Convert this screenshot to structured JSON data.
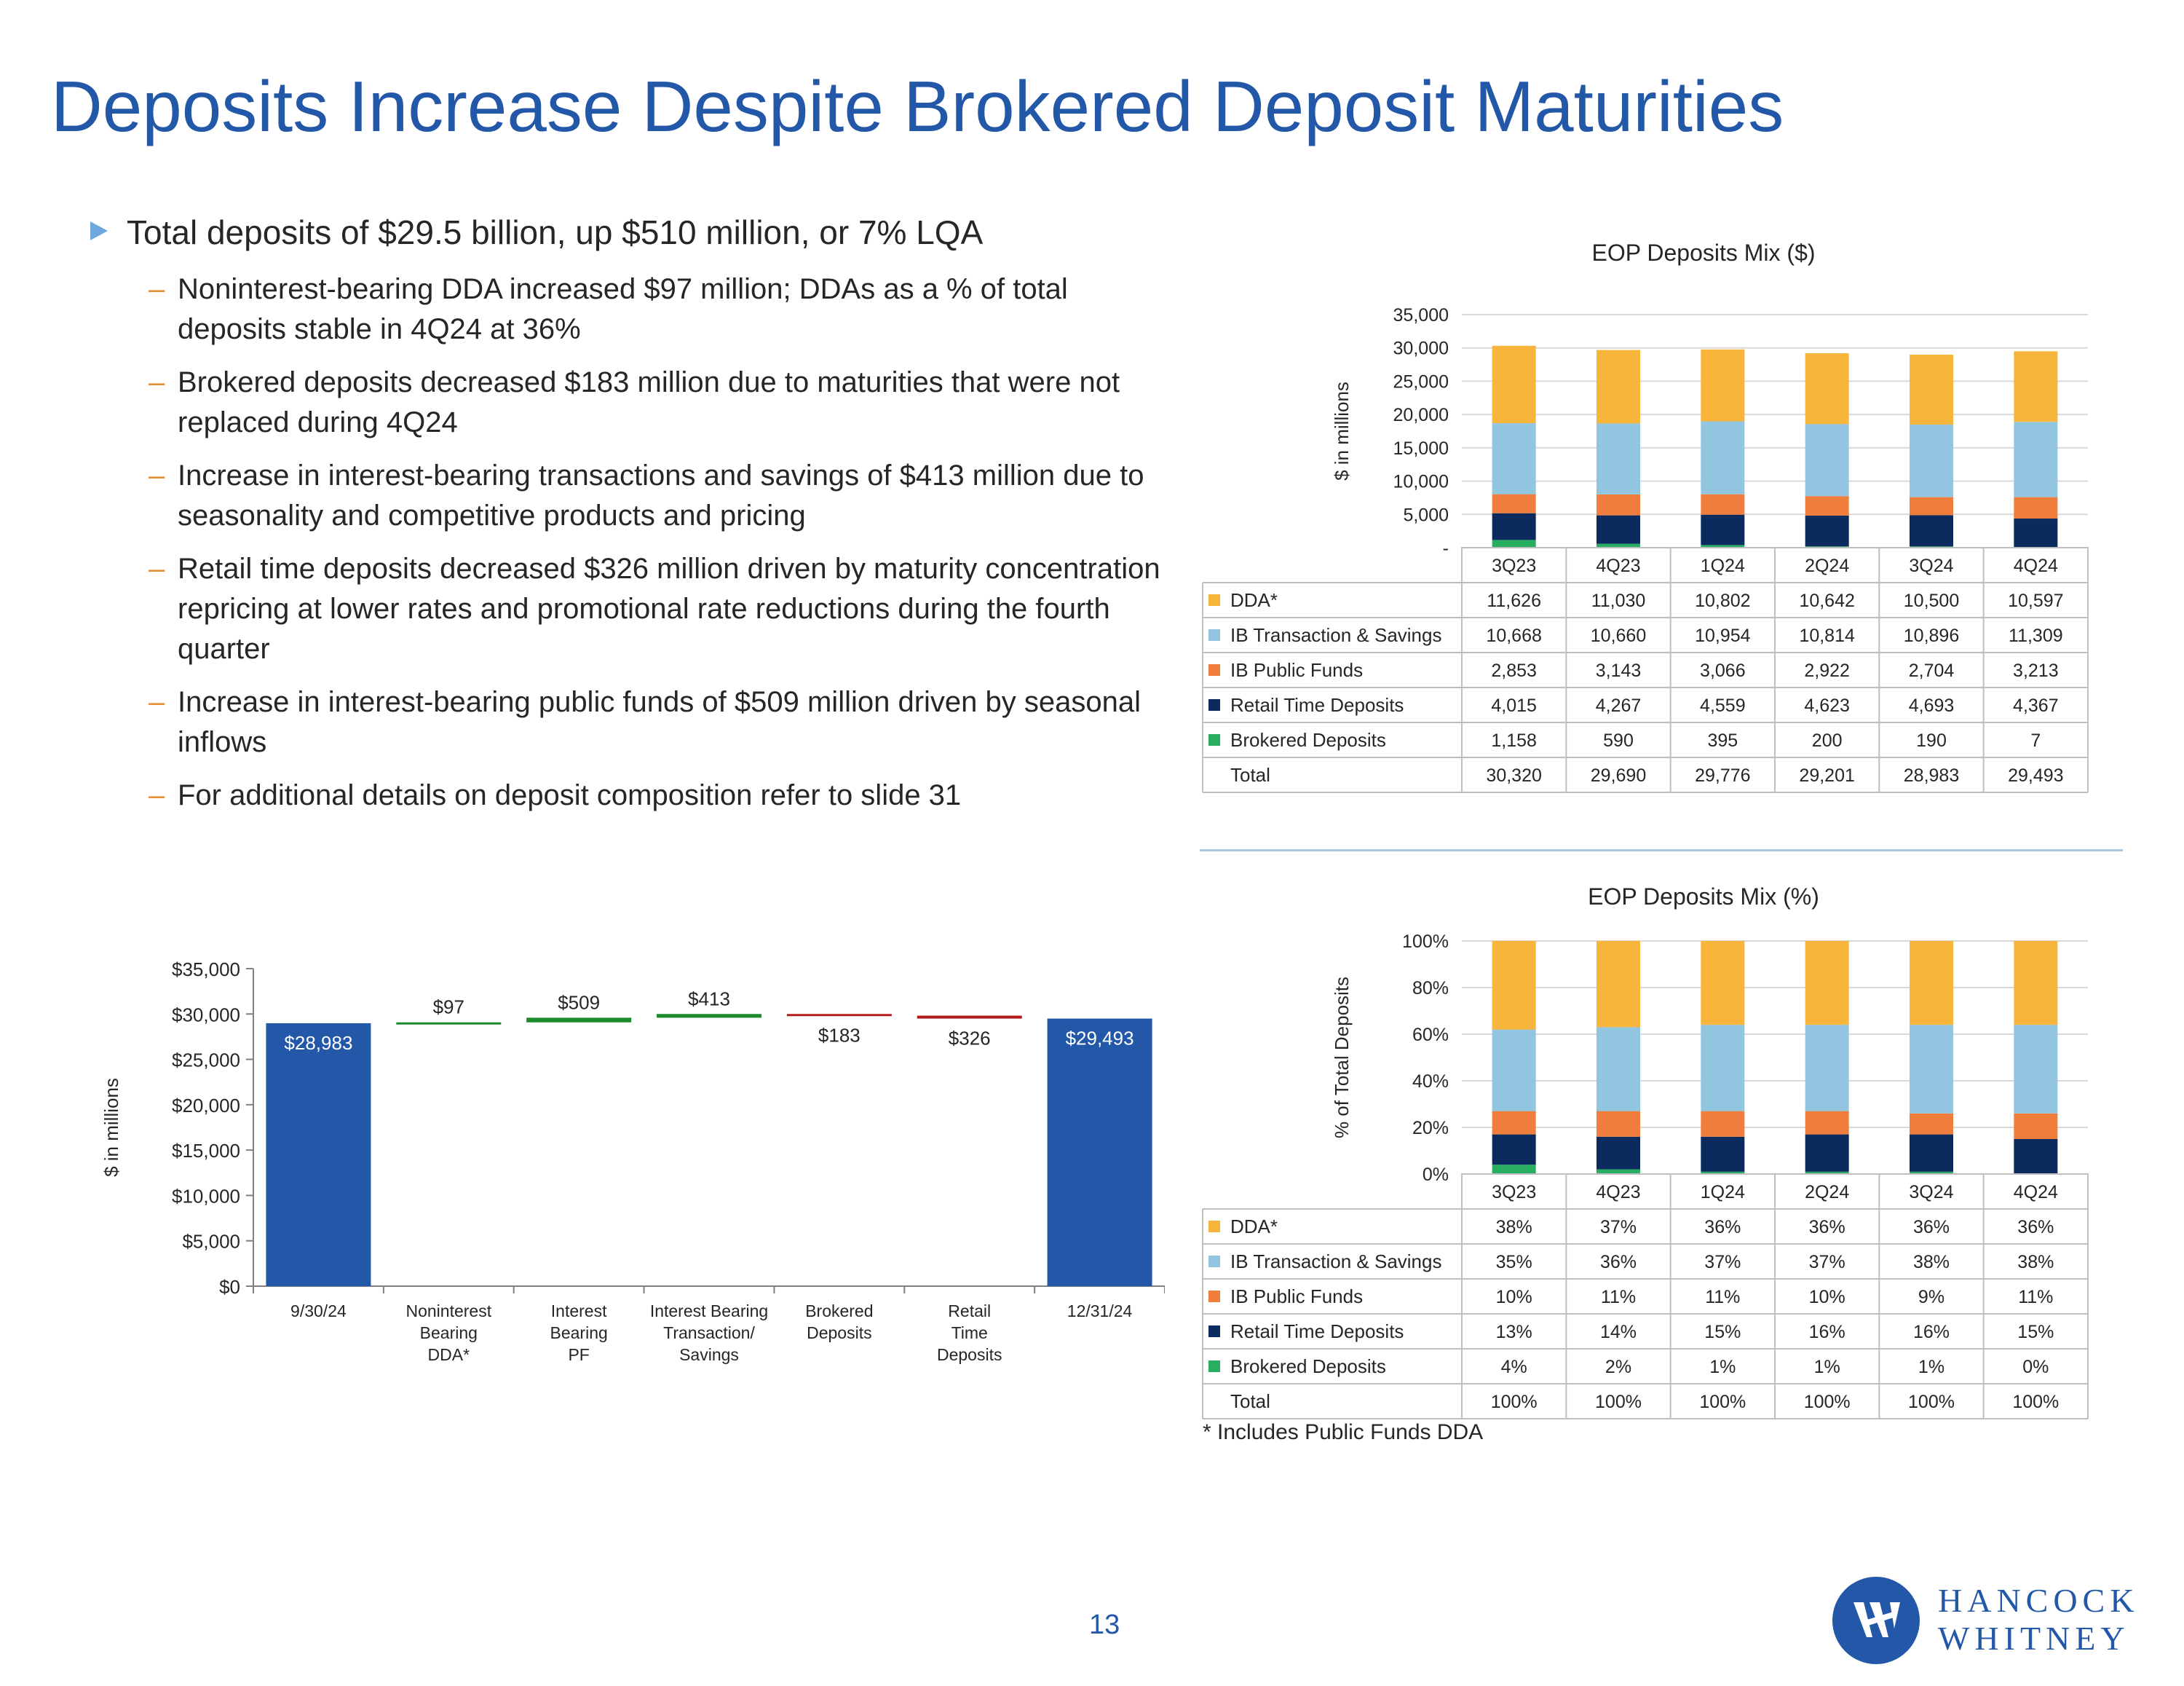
{
  "slide": {
    "title": "Deposits Increase Despite Brokered Deposit Maturities",
    "page_number": "13",
    "footnote": "* Includes Public Funds DDA",
    "logo_line1": "HANCOCK",
    "logo_line2": "WHITNEY"
  },
  "bullets": {
    "main": "Total deposits of $29.5 billion, up $510 million, or 7% LQA",
    "sub": [
      "Noninterest-bearing DDA increased $97 million; DDAs as a % of total deposits stable in 4Q24 at 36%",
      "Brokered deposits decreased $183 million due to maturities that were not replaced during 4Q24",
      "Increase in interest-bearing transactions and savings of $413 million due to seasonality and competitive products and pricing",
      "Retail time deposits decreased $326 million driven by maturity concentration repricing at lower rates and promotional rate reductions during the fourth quarter",
      "Increase in interest-bearing public funds of $509 million driven by seasonal inflows",
      "For additional details on deposit composition refer to slide 31"
    ]
  },
  "colors": {
    "accent": "#2357a8",
    "dda": "#f7b53b",
    "ib_transaction": "#92c5e0",
    "ib_public": "#ef7d3c",
    "retail_time": "#0b2b5e",
    "brokered": "#27ae60",
    "increase": "#1e8a2e",
    "decrease": "#b31b1b"
  },
  "chart_data": [
    {
      "type": "bar",
      "subtype": "waterfall",
      "title": "",
      "xlabel": "",
      "ylabel": "$ in millions",
      "ylim": [
        0,
        35000
      ],
      "yticks": [
        "$0",
        "$5,000",
        "$10,000",
        "$15,000",
        "$20,000",
        "$25,000",
        "$30,000",
        "$35,000"
      ],
      "categories": [
        "9/30/24",
        "Noninterest Bearing DDA*",
        "Interest Bearing PF",
        "Interest Bearing Transaction/ Savings",
        "Brokered Deposits",
        "Retail Time Deposits",
        "12/31/24"
      ],
      "bars": [
        {
          "kind": "total",
          "value": 28983,
          "label": "$28,983"
        },
        {
          "kind": "increase",
          "value": 97,
          "label": "$97"
        },
        {
          "kind": "increase",
          "value": 509,
          "label": "$509"
        },
        {
          "kind": "increase",
          "value": 413,
          "label": "$413"
        },
        {
          "kind": "decrease",
          "value": -183,
          "label": "$183"
        },
        {
          "kind": "decrease",
          "value": -326,
          "label": "$326"
        },
        {
          "kind": "total",
          "value": 29493,
          "label": "$29,493"
        }
      ]
    },
    {
      "type": "bar",
      "subtype": "stacked",
      "title": "EOP Deposits Mix ($)",
      "ylabel": "$ in millions",
      "ylim": [
        0,
        35000
      ],
      "yticks": [
        "-",
        "5,000",
        "10,000",
        "15,000",
        "20,000",
        "25,000",
        "30,000",
        "35,000"
      ],
      "categories": [
        "3Q23",
        "4Q23",
        "1Q24",
        "2Q24",
        "3Q24",
        "4Q24"
      ],
      "series": [
        {
          "name": "DDA*",
          "values": [
            11626,
            11030,
            10802,
            10642,
            10500,
            10597
          ],
          "labels": [
            "11,626",
            "11,030",
            "10,802",
            "10,642",
            "10,500",
            "10,597"
          ]
        },
        {
          "name": "IB Transaction & Savings",
          "values": [
            10668,
            10660,
            10954,
            10814,
            10896,
            11309
          ],
          "labels": [
            "10,668",
            "10,660",
            "10,954",
            "10,814",
            "10,896",
            "11,309"
          ]
        },
        {
          "name": "IB Public Funds",
          "values": [
            2853,
            3143,
            3066,
            2922,
            2704,
            3213
          ],
          "labels": [
            "2,853",
            "3,143",
            "3,066",
            "2,922",
            "2,704",
            "3,213"
          ]
        },
        {
          "name": "Retail Time Deposits",
          "values": [
            4015,
            4267,
            4559,
            4623,
            4693,
            4367
          ],
          "labels": [
            "4,015",
            "4,267",
            "4,559",
            "4,623",
            "4,693",
            "4,367"
          ]
        },
        {
          "name": "Brokered Deposits",
          "values": [
            1158,
            590,
            395,
            200,
            190,
            7
          ],
          "labels": [
            "1,158",
            "590",
            "395",
            "200",
            "190",
            "7"
          ]
        }
      ],
      "total": {
        "name": "Total",
        "labels": [
          "30,320",
          "29,690",
          "29,776",
          "29,201",
          "28,983",
          "29,493"
        ]
      }
    },
    {
      "type": "bar",
      "subtype": "stacked-percent",
      "title": "EOP Deposits Mix (%)",
      "ylabel": "% of Total Deposits",
      "ylim": [
        0,
        100
      ],
      "yticks": [
        "0%",
        "20%",
        "40%",
        "60%",
        "80%",
        "100%"
      ],
      "categories": [
        "3Q23",
        "4Q23",
        "1Q24",
        "2Q24",
        "3Q24",
        "4Q24"
      ],
      "series": [
        {
          "name": "DDA*",
          "values": [
            38,
            37,
            36,
            36,
            36,
            36
          ],
          "labels": [
            "38%",
            "37%",
            "36%",
            "36%",
            "36%",
            "36%"
          ]
        },
        {
          "name": "IB Transaction & Savings",
          "values": [
            35,
            36,
            37,
            37,
            38,
            38
          ],
          "labels": [
            "35%",
            "36%",
            "37%",
            "37%",
            "38%",
            "38%"
          ]
        },
        {
          "name": "IB Public Funds",
          "values": [
            10,
            11,
            11,
            10,
            9,
            11
          ],
          "labels": [
            "10%",
            "11%",
            "11%",
            "10%",
            "9%",
            "11%"
          ]
        },
        {
          "name": "Retail Time Deposits",
          "values": [
            13,
            14,
            15,
            16,
            16,
            15
          ],
          "labels": [
            "13%",
            "14%",
            "15%",
            "16%",
            "16%",
            "15%"
          ]
        },
        {
          "name": "Brokered Deposits",
          "values": [
            4,
            2,
            1,
            1,
            1,
            0
          ],
          "labels": [
            "4%",
            "2%",
            "1%",
            "1%",
            "1%",
            "0%"
          ]
        }
      ],
      "total": {
        "name": "Total",
        "labels": [
          "100%",
          "100%",
          "100%",
          "100%",
          "100%",
          "100%"
        ]
      }
    }
  ]
}
